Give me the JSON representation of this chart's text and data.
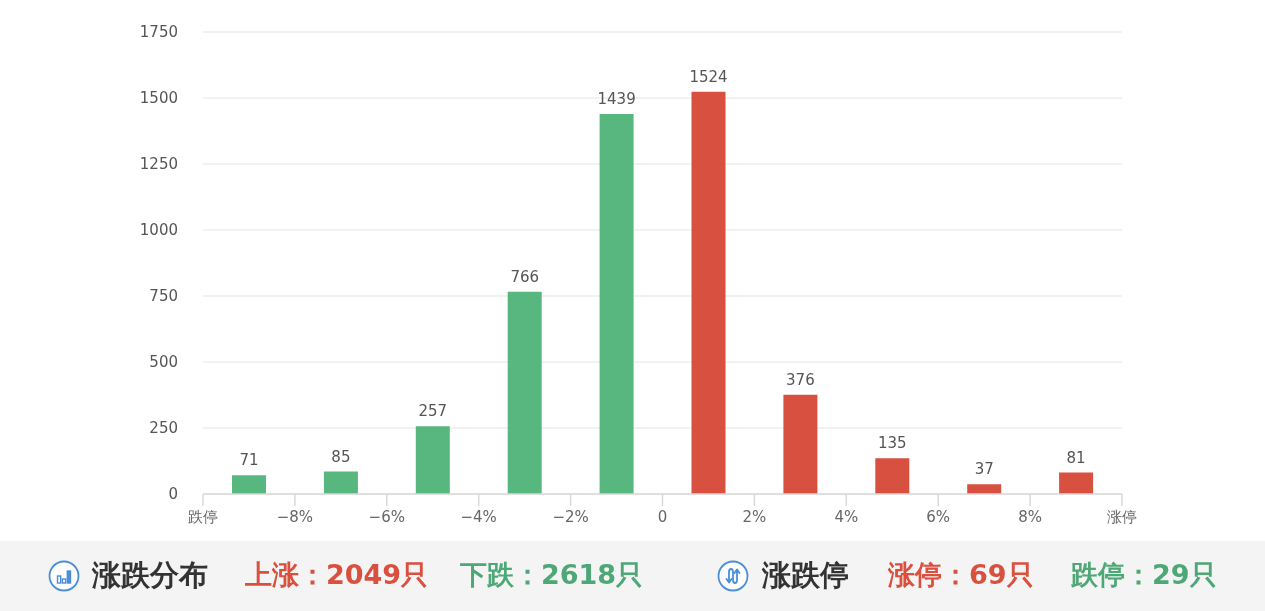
{
  "chart_data": {
    "type": "histogram",
    "bins": [
      -10,
      -8,
      -6,
      -4,
      -2,
      0,
      2,
      4,
      6,
      8,
      10
    ],
    "values": [
      71,
      85,
      257,
      766,
      1439,
      1524,
      376,
      135,
      37,
      81
    ],
    "colors": [
      "#58b77f",
      "#58b77f",
      "#58b77f",
      "#58b77f",
      "#58b77f",
      "#d85140",
      "#d85140",
      "#d85140",
      "#d85140",
      "#d85140"
    ],
    "xlim": [
      -10,
      10
    ],
    "xticks": [
      {
        "value": -10,
        "label": "跌停"
      },
      {
        "value": -8,
        "label": "−8%"
      },
      {
        "value": -6,
        "label": "−6%"
      },
      {
        "value": -4,
        "label": "−4%"
      },
      {
        "value": -2,
        "label": "−2%"
      },
      0,
      {
        "value": 2,
        "label": "2%"
      },
      {
        "value": 4,
        "label": "4%"
      },
      {
        "value": 6,
        "label": "6%"
      },
      {
        "value": 8,
        "label": "8%"
      },
      {
        "value": 10,
        "label": "涨停"
      }
    ],
    "ylim": [
      0,
      1750
    ],
    "yticks": [
      0,
      250,
      500,
      750,
      1000,
      1250,
      1500,
      1750
    ],
    "grid": "y",
    "data_labels": true,
    "annotations": [
      "涨跌分布",
      "上涨：2049只",
      "下跌：2618只",
      "涨跌停",
      "涨停：69只",
      "跌停：29只"
    ]
  }
}
